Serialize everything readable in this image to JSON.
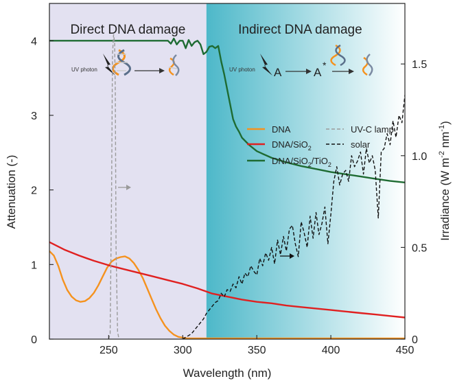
{
  "chart_data": {
    "type": "line",
    "xlabel": "Wavelength (nm)",
    "ylabel_left": "Attenuation (-)",
    "ylabel_right_parts": [
      "Irradiance (W m",
      "-2",
      " nm",
      "-1",
      ")"
    ],
    "xlim": [
      210,
      450
    ],
    "ylim_left": [
      0,
      4.5
    ],
    "ylim_right": [
      0,
      1.83
    ],
    "x_ticks": [
      250,
      300,
      350,
      400,
      450
    ],
    "y_ticks_left": [
      0,
      1,
      2,
      3,
      4
    ],
    "y_ticks_right": [
      0,
      0.5,
      1.0,
      1.5
    ],
    "regions": [
      {
        "label": "Direct DNA damage",
        "x_range": [
          210,
          316
        ],
        "color": "#e3e1f1"
      },
      {
        "label": "Indirect DNA damage",
        "x_range": [
          316,
          450
        ],
        "gradient": [
          "#4db8c9",
          "#ffffff"
        ]
      }
    ],
    "schematic": {
      "direct_photon_label": "UV photon",
      "indirect_photon_label": "UV photon",
      "indirect_species_a": "A",
      "indirect_species_excited": "A",
      "excited_mark": "*"
    },
    "legend": [
      {
        "name": "DNA",
        "color": "#f5921e",
        "style": "solid"
      },
      {
        "name": "DNA/SiO2",
        "color": "#e02020",
        "style": "solid"
      },
      {
        "name": "DNA/SiO2/TiO2",
        "color": "#1e6b32",
        "style": "solid"
      },
      {
        "name": "UV-C lamp",
        "color": "#9a9a9a",
        "style": "dashed"
      },
      {
        "name": "solar",
        "color": "#111111",
        "style": "dashed"
      }
    ],
    "series": [
      {
        "name": "DNA",
        "axis": "left",
        "color": "#f5921e",
        "dashed": false,
        "x": [
          210,
          213,
          216,
          219,
          222,
          225,
          228,
          231,
          234,
          237,
          240,
          243,
          246,
          249,
          252,
          255,
          258,
          261,
          264,
          267,
          270,
          273,
          276,
          279,
          282,
          285,
          288,
          291,
          294,
          297,
          300,
          303,
          306,
          310,
          320,
          330,
          340,
          360,
          380,
          400,
          420,
          440,
          450
        ],
        "y": [
          1.18,
          1.12,
          0.98,
          0.8,
          0.66,
          0.57,
          0.52,
          0.5,
          0.51,
          0.55,
          0.62,
          0.72,
          0.84,
          0.96,
          1.04,
          1.08,
          1.1,
          1.11,
          1.08,
          1.02,
          0.93,
          0.82,
          0.68,
          0.54,
          0.4,
          0.28,
          0.18,
          0.11,
          0.06,
          0.03,
          0.02,
          0.01,
          0.01,
          0.01,
          0.01,
          0.01,
          0.01,
          0.01,
          0.01,
          0.01,
          0.01,
          0.01,
          0.01
        ]
      },
      {
        "name": "DNA/SiO2",
        "axis": "left",
        "color": "#e02020",
        "dashed": false,
        "x": [
          210,
          220,
          230,
          240,
          250,
          260,
          270,
          280,
          290,
          300,
          310,
          320,
          330,
          340,
          350,
          360,
          370,
          380,
          390,
          400,
          410,
          420,
          430,
          440,
          450
        ],
        "y": [
          1.3,
          1.2,
          1.12,
          1.05,
          0.99,
          0.94,
          0.89,
          0.84,
          0.79,
          0.74,
          0.68,
          0.61,
          0.57,
          0.53,
          0.5,
          0.48,
          0.45,
          0.43,
          0.41,
          0.39,
          0.37,
          0.35,
          0.33,
          0.31,
          0.29
        ]
      },
      {
        "name": "DNA/SiO2/TiO2",
        "axis": "left",
        "color": "#1e6b32",
        "dashed": false,
        "x": [
          210,
          250,
          290,
          292,
          294,
          296,
          298,
          300,
          302,
          304,
          306,
          308,
          310,
          312,
          314,
          316,
          318,
          320,
          322,
          324,
          326,
          328,
          330,
          332,
          334,
          336,
          338,
          340,
          345,
          350,
          360,
          370,
          380,
          390,
          400,
          410,
          420,
          430,
          440,
          450
        ],
        "y": [
          4.0,
          4.0,
          4.0,
          3.96,
          4.03,
          3.95,
          4.0,
          4.0,
          3.9,
          4.01,
          3.93,
          3.98,
          4.0,
          3.95,
          3.82,
          3.85,
          3.92,
          3.93,
          3.9,
          3.93,
          3.72,
          3.55,
          3.35,
          3.15,
          2.95,
          2.85,
          2.78,
          2.7,
          2.6,
          2.52,
          2.43,
          2.37,
          2.32,
          2.28,
          2.24,
          2.21,
          2.18,
          2.15,
          2.12,
          2.1
        ]
      },
      {
        "name": "UV-C lamp",
        "axis": "right",
        "color": "#9a9a9a",
        "dashed": true,
        "x": [
          250,
          251,
          252,
          252.6,
          253.3,
          254,
          254.5,
          255,
          256,
          257
        ],
        "y": [
          0,
          0.03,
          0.8,
          1.55,
          1.66,
          1.62,
          1.35,
          0.5,
          0.04,
          0
        ]
      },
      {
        "name": "solar",
        "axis": "right",
        "color": "#111111",
        "dashed": true,
        "x": [
          300,
          302,
          304,
          306,
          308,
          310,
          312,
          314,
          316,
          318,
          320,
          322,
          324,
          326,
          328,
          330,
          332,
          334,
          336,
          338,
          340,
          342,
          344,
          346,
          348,
          350,
          352,
          354,
          356,
          358,
          360,
          362,
          364,
          366,
          368,
          370,
          372,
          374,
          376,
          378,
          380,
          382,
          384,
          386,
          388,
          390,
          392,
          394,
          396,
          398,
          400,
          402,
          404,
          406,
          408,
          410,
          412,
          414,
          416,
          418,
          420,
          422,
          424,
          426,
          428,
          430,
          432,
          434,
          436,
          438,
          440,
          442,
          444,
          446,
          448,
          450
        ],
        "y": [
          0,
          0.01,
          0.02,
          0.03,
          0.05,
          0.07,
          0.09,
          0.11,
          0.14,
          0.16,
          0.18,
          0.2,
          0.21,
          0.25,
          0.23,
          0.27,
          0.26,
          0.3,
          0.28,
          0.34,
          0.3,
          0.36,
          0.34,
          0.4,
          0.37,
          0.35,
          0.44,
          0.4,
          0.47,
          0.43,
          0.5,
          0.41,
          0.54,
          0.46,
          0.56,
          0.48,
          0.6,
          0.62,
          0.52,
          0.45,
          0.64,
          0.58,
          0.5,
          0.67,
          0.55,
          0.69,
          0.57,
          0.63,
          0.72,
          0.52,
          0.68,
          0.86,
          0.94,
          0.84,
          0.9,
          0.92,
          0.86,
          1.0,
          0.94,
          0.97,
          1.02,
          0.9,
          1.04,
          0.96,
          1.0,
          0.92,
          0.66,
          1.02,
          1.04,
          1.12,
          1.06,
          1.19,
          1.1,
          1.22,
          1.18,
          1.33
        ]
      }
    ]
  }
}
